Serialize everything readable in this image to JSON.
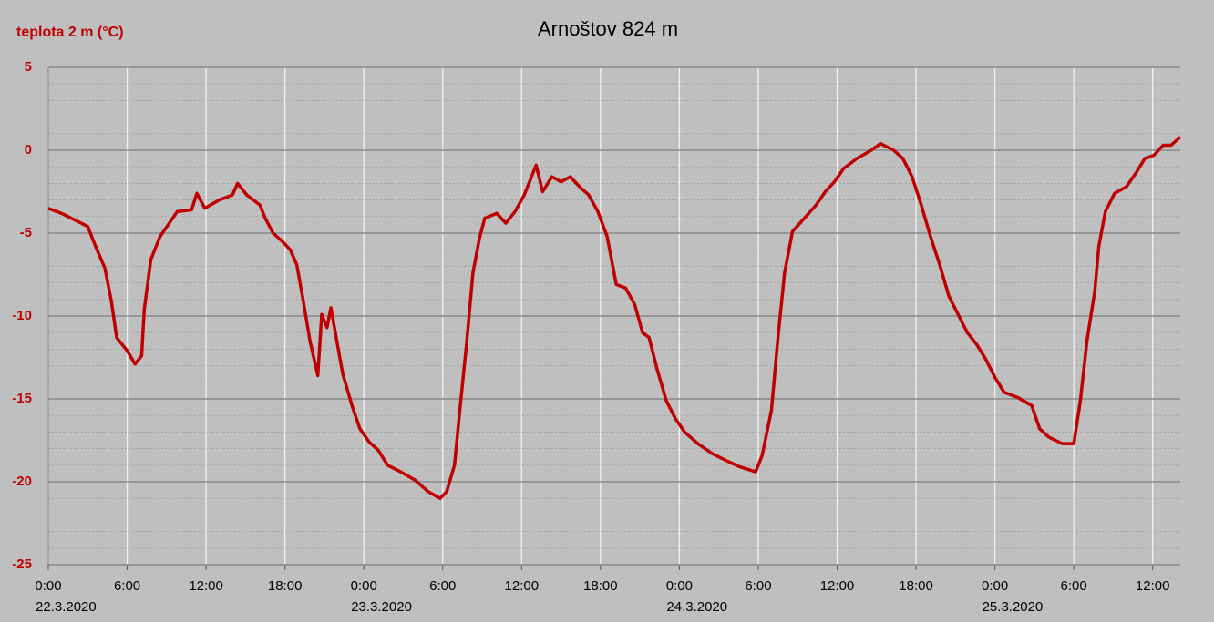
{
  "chart_data": {
    "type": "line",
    "title": "Arnoštov 824 m",
    "y_label": "teplota 2 m (°C)",
    "xlim": [
      0,
      86.1
    ],
    "ylim": [
      -25,
      5
    ],
    "yticks": [
      -25,
      -20,
      -15,
      -10,
      -5,
      0,
      5
    ],
    "xticks": [
      {
        "value": 0,
        "label": "0:00"
      },
      {
        "value": 6,
        "label": "6:00"
      },
      {
        "value": 12,
        "label": "12:00"
      },
      {
        "value": 18,
        "label": "18:00"
      },
      {
        "value": 24,
        "label": "0:00"
      },
      {
        "value": 30,
        "label": "6:00"
      },
      {
        "value": 36,
        "label": "12:00"
      },
      {
        "value": 42,
        "label": "18:00"
      },
      {
        "value": 48,
        "label": "0:00"
      },
      {
        "value": 54,
        "label": "6:00"
      },
      {
        "value": 60,
        "label": "12:00"
      },
      {
        "value": 66,
        "label": "18:00"
      },
      {
        "value": 72,
        "label": "0:00"
      },
      {
        "value": 78,
        "label": "6:00"
      },
      {
        "value": 84,
        "label": "12:00"
      }
    ],
    "date_ticks": [
      {
        "value": 0,
        "label": "22.3.2020"
      },
      {
        "value": 24,
        "label": "23.3.2020"
      },
      {
        "value": 48,
        "label": "24.3.2020"
      },
      {
        "value": 72,
        "label": "25.3.2020"
      }
    ],
    "grid": true,
    "series": [
      {
        "name": "teplota 2 m",
        "color": "#c00000",
        "x": [
          0,
          1,
          2,
          3,
          3.6,
          4.3,
          4.8,
          5.2,
          6,
          6.6,
          7.1,
          7.3,
          7.8,
          8.5,
          9.2,
          9.8,
          10.9,
          11.3,
          11.9,
          13,
          14,
          14.4,
          15.1,
          16.1,
          16.5,
          17.1,
          17.8,
          18.4,
          18.9,
          19.4,
          19.9,
          20.5,
          20.8,
          21.2,
          21.5,
          21.9,
          22.4,
          23.1,
          23.7,
          24.4,
          25.1,
          25.8,
          26.8,
          27.9,
          28.9,
          29.8,
          30.3,
          30.9,
          31.3,
          31.8,
          32.3,
          32.8,
          33.2,
          34.1,
          34.8,
          35.5,
          36.2,
          36.6,
          37.1,
          37.6,
          38.3,
          39,
          39.7,
          40.4,
          41.1,
          41.8,
          42.5,
          43.2,
          43.9,
          44.6,
          45.2,
          45.7,
          46.3,
          47,
          47.7,
          48.4,
          49.4,
          50.5,
          51.5,
          52.6,
          53.8,
          54.3,
          55,
          55.5,
          56,
          56.6,
          57.4,
          58.4,
          59.1,
          59.8,
          60.5,
          61.5,
          62.6,
          63.3,
          64.3,
          65,
          65.7,
          66.4,
          67.1,
          67.8,
          68.5,
          69.2,
          69.9,
          70.6,
          71.3,
          72,
          72.7,
          73.7,
          74.8,
          75.4,
          76.1,
          77.1,
          78,
          78.5,
          79,
          79.6,
          79.9,
          80.4,
          81.1,
          82,
          82.7,
          83.4,
          84.1,
          84.8,
          85.4,
          86.1
        ],
        "values": [
          -3.5,
          -3.8,
          -4.2,
          -4.6,
          -5.8,
          -7.1,
          -9.1,
          -11.3,
          -12.1,
          -12.9,
          -12.4,
          -9.6,
          -6.6,
          -5.2,
          -4.4,
          -3.7,
          -3.6,
          -2.6,
          -3.5,
          -3.0,
          -2.7,
          -2.0,
          -2.7,
          -3.3,
          -4.1,
          -5.0,
          -5.5,
          -6.0,
          -6.9,
          -9.1,
          -11.5,
          -13.6,
          -9.9,
          -10.7,
          -9.5,
          -11.3,
          -13.5,
          -15.4,
          -16.8,
          -17.6,
          -18.1,
          -19.0,
          -19.4,
          -19.9,
          -20.6,
          -21.0,
          -20.6,
          -19.0,
          -15.7,
          -11.8,
          -7.4,
          -5.3,
          -4.1,
          -3.8,
          -4.4,
          -3.7,
          -2.7,
          -1.9,
          -0.9,
          -2.5,
          -1.6,
          -1.9,
          -1.6,
          -2.2,
          -2.7,
          -3.7,
          -5.2,
          -8.1,
          -8.3,
          -9.3,
          -11.0,
          -11.3,
          -13.2,
          -15.1,
          -16.2,
          -17.0,
          -17.7,
          -18.3,
          -18.7,
          -19.1,
          -19.4,
          -18.4,
          -15.7,
          -11.3,
          -7.4,
          -4.9,
          -4.2,
          -3.3,
          -2.5,
          -1.9,
          -1.1,
          -0.5,
          0.0,
          0.4,
          0.0,
          -0.5,
          -1.6,
          -3.3,
          -5.2,
          -6.9,
          -8.8,
          -9.9,
          -11.0,
          -11.7,
          -12.6,
          -13.7,
          -14.6,
          -14.9,
          -15.4,
          -16.8,
          -17.3,
          -17.7,
          -17.7,
          -15.1,
          -11.5,
          -8.5,
          -5.8,
          -3.7,
          -2.6,
          -2.2,
          -1.4,
          -0.5,
          -0.3,
          0.3,
          0.3,
          0.8
        ]
      }
    ]
  }
}
